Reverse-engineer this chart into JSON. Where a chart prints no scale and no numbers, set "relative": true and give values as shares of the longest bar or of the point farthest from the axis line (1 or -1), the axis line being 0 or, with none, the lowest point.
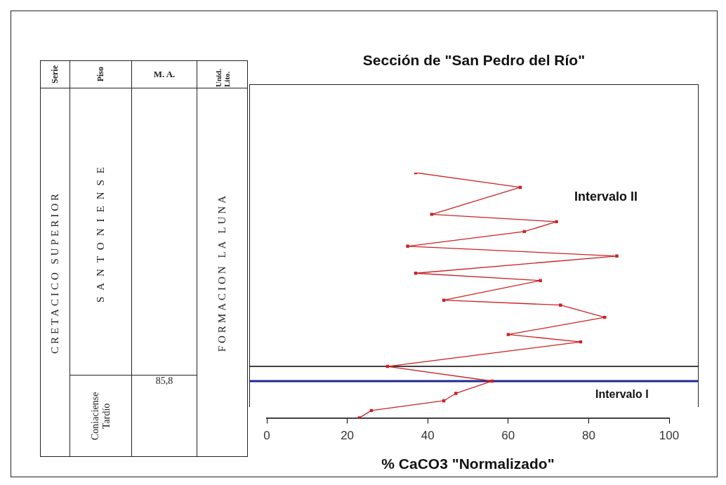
{
  "chart_data": {
    "type": "line",
    "title": "Sección de \"San Pedro del Río\"",
    "xlabel": "% CaCO3 \"Normalizado\"",
    "relative": true,
    "series": [
      {
        "color": "#cc2222",
        "x": [
          37,
          63,
          41,
          72,
          64,
          35,
          87,
          37,
          68,
          44,
          73,
          84,
          60,
          78,
          30,
          56,
          47,
          44,
          26,
          23
        ],
        "values": [
          1,
          0.94,
          0.83,
          0.8,
          0.76,
          0.7,
          0.66,
          0.59,
          0.56,
          0.48,
          0.46,
          0.41,
          0.34,
          0.31,
          0.21,
          0.15,
          0.1,
          0.07,
          0.03,
          0
        ]
      }
    ],
    "xlim": [
      0,
      100
    ],
    "xticks": [
      0,
      20,
      40,
      60,
      80,
      100
    ],
    "grid": false,
    "legend": false,
    "tick_labels": "x",
    "marker": "square",
    "line_style": "solid",
    "ref_lines": [
      {
        "axis": "y",
        "value": 0.21,
        "color": "#000000"
      },
      {
        "axis": "y",
        "value": 0.15,
        "color": "#1f2a8c"
      }
    ],
    "annotations": [
      "Serie",
      "Piso",
      "M. A.",
      "Unid. Lito.",
      "CRETACICO SUPERIOR",
      "SANTONIENSE",
      "Coniaciense Tardío",
      "85,8",
      "FORMACION LA LUNA",
      "Intervalo II",
      "Intervalo I"
    ]
  }
}
